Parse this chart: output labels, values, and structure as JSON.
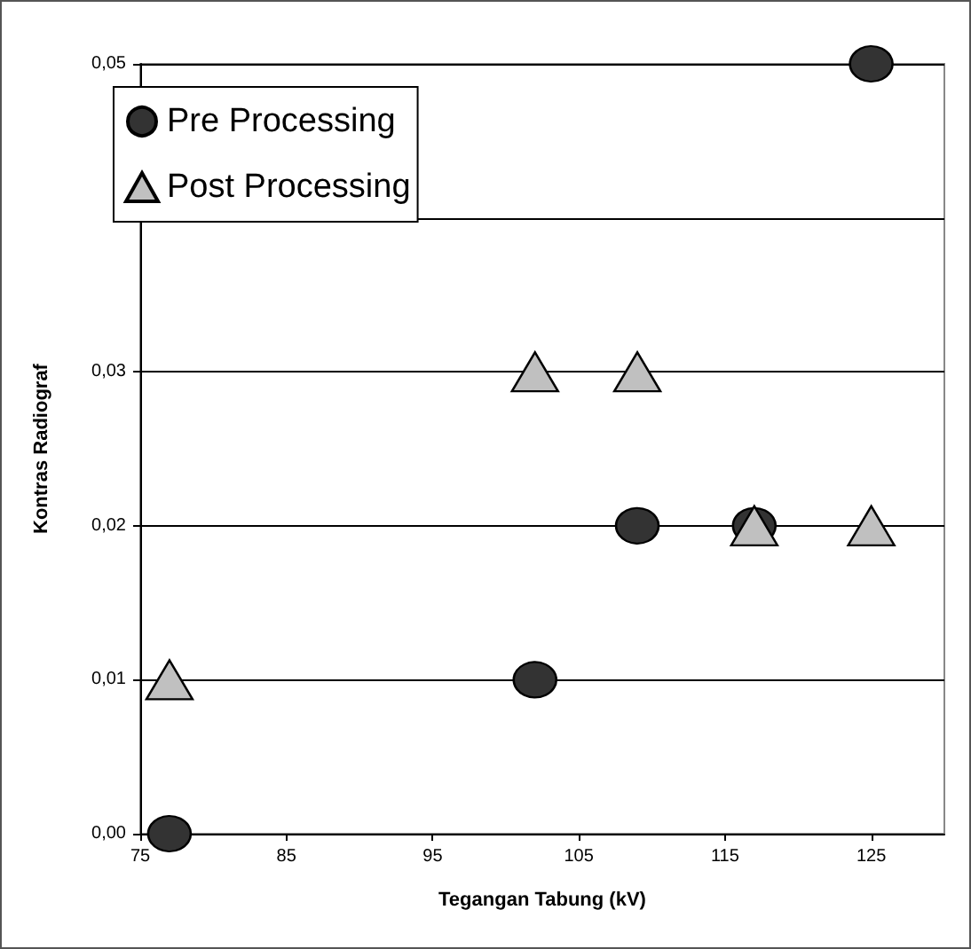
{
  "chart_data": {
    "type": "scatter",
    "xlabel": "Tegangan Tabung (kV)",
    "ylabel": "Kontras Radiograf",
    "series": [
      {
        "name": "Pre Processing",
        "color": "#333333",
        "marker": "circle",
        "x": [
          77,
          102,
          109,
          117,
          125
        ],
        "values": [
          0,
          0.01,
          0.02,
          0.02,
          0.05
        ]
      },
      {
        "name": "Post Processing",
        "color": "#c0c0c0",
        "marker": "triangle",
        "x": [
          77,
          102,
          109,
          117,
          125
        ],
        "values": [
          0.01,
          0.03,
          0.03,
          0.02,
          0.02
        ]
      }
    ],
    "xlim": [
      75,
      130
    ],
    "xticks": [
      75,
      85,
      95,
      105,
      115,
      125
    ],
    "ylim": [
      0,
      0.05
    ],
    "yticks": [
      {
        "value": 0,
        "label": "0,00"
      },
      {
        "value": 0.01,
        "label": "0,01"
      },
      {
        "value": 0.02,
        "label": "0,02"
      },
      {
        "value": 0.03,
        "label": "0,03"
      },
      {
        "value": 0.04,
        "label": null
      },
      {
        "value": 0.05,
        "label": "0,05"
      }
    ],
    "grid": "y",
    "legend": "top left"
  }
}
